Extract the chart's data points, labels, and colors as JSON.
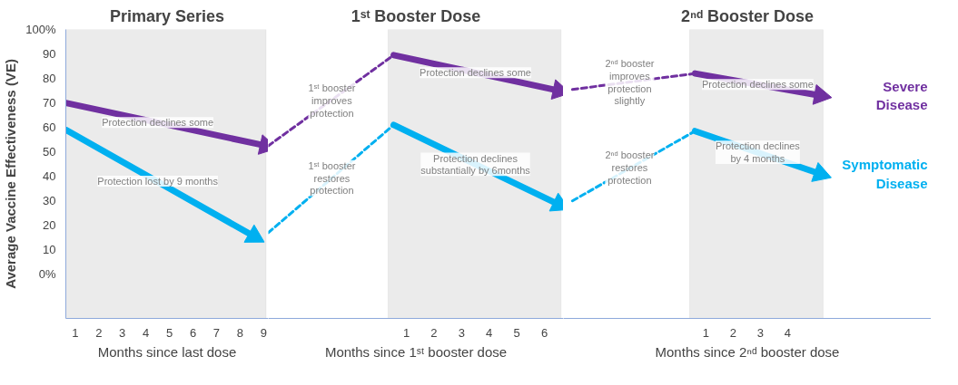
{
  "chart_data": [
    {
      "type": "line",
      "title": "Primary Series",
      "xlabel": "Months since last dose",
      "ylabel": "Average Vaccine Effectiveness (VE)",
      "xlim": [
        0.6,
        9.2
      ],
      "xticks": [
        1,
        2,
        3,
        4,
        5,
        6,
        7,
        8,
        9
      ],
      "ylim": [
        -18,
        100
      ],
      "yticks": [
        {
          "value": 0,
          "label": "0%"
        },
        10,
        20,
        30,
        40,
        50,
        60,
        70,
        80,
        90,
        {
          "value": 100,
          "label": "100%"
        }
      ],
      "grid": false,
      "bands": [
        {
          "axis": "x",
          "from": 0.6,
          "to": 9.1,
          "color": "#ebebeb"
        }
      ],
      "series": [
        {
          "color": "#7030a0",
          "x": [
            0.6,
            9.1
          ],
          "values": [
            70,
            52.5
          ],
          "line_style": "solid",
          "marker": "triangle"
        },
        {
          "color": "#00b0f0",
          "x": [
            0.6,
            8.6
          ],
          "values": [
            59,
            15.5
          ],
          "line_style": "solid",
          "marker": "triangle"
        }
      ],
      "annotations": [
        {
          "text": "Protection declines some",
          "x": 4.5,
          "y": 62
        },
        {
          "text": "Protection lost by 9 months",
          "x": 4.5,
          "y": 38
        }
      ]
    },
    {
      "type": "line",
      "title": "1ˢᵗ Booster Dose",
      "xlabel": "Months since 1ˢᵗ booster dose",
      "xlim": [
        -4.0,
        6.69
      ],
      "xticks": [
        1,
        2,
        3,
        4,
        5,
        6
      ],
      "ylim": [
        -18,
        100
      ],
      "tick_labels": "x",
      "grid": false,
      "bands": [
        {
          "axis": "x",
          "from": 0.34,
          "to": 6.6,
          "color": "#ebebeb"
        }
      ],
      "series": [
        {
          "color": "#7030a0",
          "x": [
            -4.0,
            0.54
          ],
          "values": [
            52.5,
            89.5
          ],
          "line_style": "dashed"
        },
        {
          "color": "#7030a0",
          "x": [
            0.54,
            6.53
          ],
          "values": [
            89.5,
            75
          ],
          "line_style": "solid",
          "marker": "triangle"
        },
        {
          "color": "#00b0f0",
          "x": [
            -4.0,
            0.54
          ],
          "values": [
            17,
            61
          ],
          "line_style": "dashed"
        },
        {
          "color": "#00b0f0",
          "x": [
            0.54,
            6.53
          ],
          "values": [
            61,
            28.5
          ],
          "line_style": "solid",
          "marker": "triangle"
        }
      ],
      "annotations": [
        {
          "text": "1ˢᵗ booster\nimproves\nprotection",
          "x": -1.7,
          "y": 71
        },
        {
          "text": "1ˢᵗ booster\nrestores\nprotection",
          "x": -1.7,
          "y": 39.3
        },
        {
          "text": "Protection declines some",
          "x": 3.5,
          "y": 82.3
        },
        {
          "text": "Protection declines\nsubstantially by 6months",
          "x": 3.5,
          "y": 44.9
        }
      ]
    },
    {
      "type": "line",
      "title": "2ⁿᵈ Booster Dose",
      "xlabel": "Months since 2ⁿᵈ booster dose",
      "xlim": [
        -4.23,
        9.27
      ],
      "xticks": [
        1,
        2,
        3,
        4
      ],
      "ylim": [
        -18,
        100
      ],
      "tick_labels": "x",
      "grid": false,
      "legend": "right",
      "bands": [
        {
          "axis": "x",
          "from": 0.4,
          "to": 5.3,
          "color": "#ebebeb"
        }
      ],
      "series": [
        {
          "color": "#7030a0",
          "x": [
            -3.9,
            0.6
          ],
          "values": [
            75.5,
            82
          ],
          "line_style": "dashed"
        },
        {
          "name": "Severe\nDisease",
          "color": "#7030a0",
          "x": [
            0.6,
            5.2
          ],
          "values": [
            82,
            73
          ],
          "line_style": "solid",
          "marker": "triangle"
        },
        {
          "color": "#00b0f0",
          "x": [
            -3.9,
            0.6
          ],
          "values": [
            30,
            58.5
          ],
          "line_style": "dashed"
        },
        {
          "name": "Symptomatic\nDisease",
          "color": "#00b0f0",
          "x": [
            0.6,
            5.2
          ],
          "values": [
            58.5,
            41
          ],
          "line_style": "solid",
          "marker": "triangle"
        }
      ],
      "annotations": [
        {
          "text": "2ⁿᵈ booster\nimproves\nprotection\nslightly",
          "x": -1.8,
          "y": 78.5
        },
        {
          "text": "2ⁿᵈ booster\nrestores\nprotection",
          "x": -1.8,
          "y": 43.6
        },
        {
          "text": "Protection declines some",
          "x": 2.9,
          "y": 77.5
        },
        {
          "text": "Protection declines\nby 4 months",
          "x": 2.9,
          "y": 49.8
        }
      ]
    }
  ]
}
